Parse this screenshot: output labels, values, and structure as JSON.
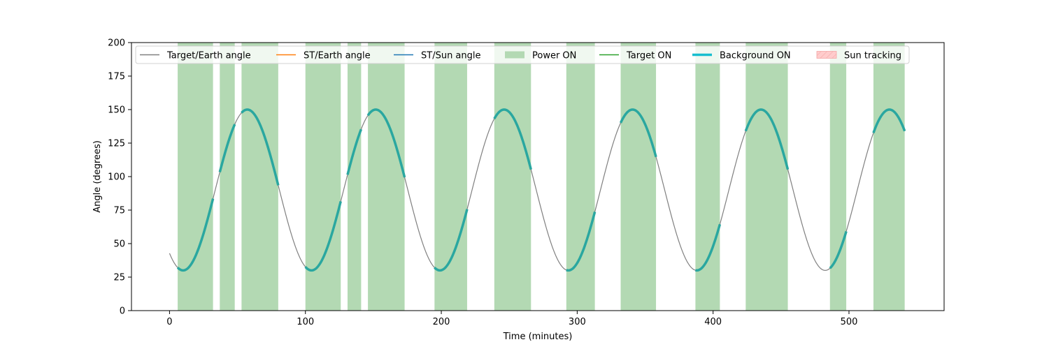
{
  "chart_data": {
    "type": "line",
    "xlabel": "Time (minutes)",
    "ylabel": "Angle (degrees)",
    "xlim": [
      -28,
      570
    ],
    "ylim": [
      0,
      200
    ],
    "xticks": [
      0,
      100,
      200,
      300,
      400,
      500
    ],
    "yticks": [
      0,
      25,
      50,
      75,
      100,
      125,
      150,
      175,
      200
    ],
    "grid": false,
    "legend_position": "top",
    "legend": [
      {
        "label": "Target/Earth angle",
        "kind": "line",
        "color": "#808080"
      },
      {
        "label": "ST/Earth angle",
        "kind": "line",
        "color": "#ff7f0e"
      },
      {
        "label": "ST/Sun angle",
        "kind": "line",
        "color": "#1f77b4"
      },
      {
        "label": "Power ON",
        "kind": "patch",
        "color": "#b3d9b3"
      },
      {
        "label": "Target ON",
        "kind": "line",
        "color": "#2ca02c"
      },
      {
        "label": "Background ON",
        "kind": "thickline",
        "color": "#17becf"
      },
      {
        "label": "Sun tracking",
        "kind": "hatch",
        "color": "#ffcccc"
      }
    ],
    "target_earth_angle": {
      "description_of_curve": "sinusoid",
      "x_range": [
        0,
        541
      ],
      "min": 30,
      "max": 150,
      "period": 94.5,
      "first_min_at": 10,
      "color": "#808080"
    },
    "power_on_intervals": [
      [
        6,
        32
      ],
      [
        37,
        48
      ],
      [
        53,
        80
      ],
      [
        100,
        126
      ],
      [
        131,
        141
      ],
      [
        146,
        173
      ],
      [
        195,
        219
      ],
      [
        239,
        266
      ],
      [
        292,
        313
      ],
      [
        332,
        358
      ],
      [
        387,
        405
      ],
      [
        424,
        455
      ],
      [
        486,
        498
      ],
      [
        518,
        541
      ]
    ],
    "background_on_intervals": [
      [
        6,
        32
      ],
      [
        37,
        48
      ],
      [
        53,
        80
      ],
      [
        100,
        126
      ],
      [
        131,
        141
      ],
      [
        146,
        173
      ],
      [
        195,
        219
      ],
      [
        239,
        266
      ],
      [
        292,
        313
      ],
      [
        332,
        358
      ],
      [
        387,
        405
      ],
      [
        424,
        455
      ],
      [
        486,
        498
      ],
      [
        518,
        541
      ]
    ],
    "colors": {
      "power_fill": "#b3d9b3",
      "background_line": "#2aa7a0",
      "target_line": "#808080"
    }
  }
}
